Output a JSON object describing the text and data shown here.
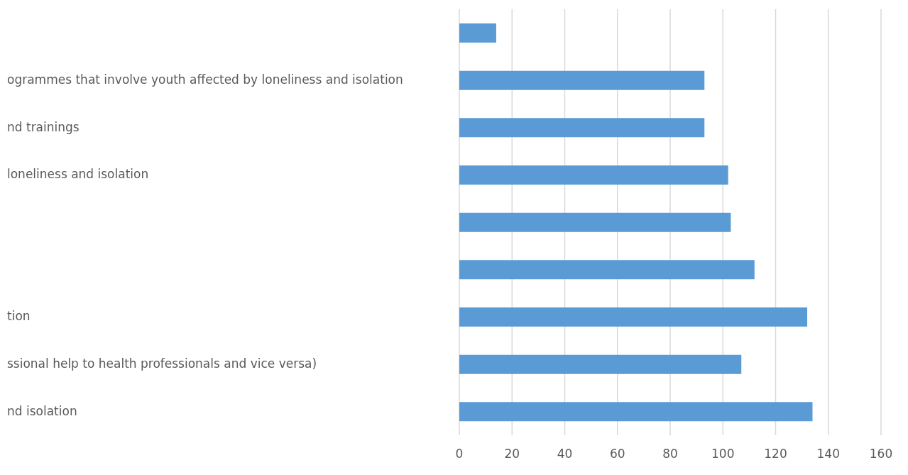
{
  "chart_data": {
    "type": "bar",
    "orientation": "horizontal",
    "categories": [
      null,
      "ogrammes that involve youth affected by loneliness and isolation",
      "nd trainings",
      "loneliness and isolation",
      null,
      null,
      "tion",
      "ssional help to health professionals and vice versa)",
      "nd isolation"
    ],
    "values": [
      14,
      93,
      93,
      102,
      103,
      112,
      132,
      107,
      134
    ],
    "color": "#5b9bd5",
    "xlim": [
      0,
      160
    ],
    "xticks": [
      0,
      20,
      40,
      60,
      80,
      100,
      120,
      140,
      160
    ],
    "grid": "x"
  }
}
